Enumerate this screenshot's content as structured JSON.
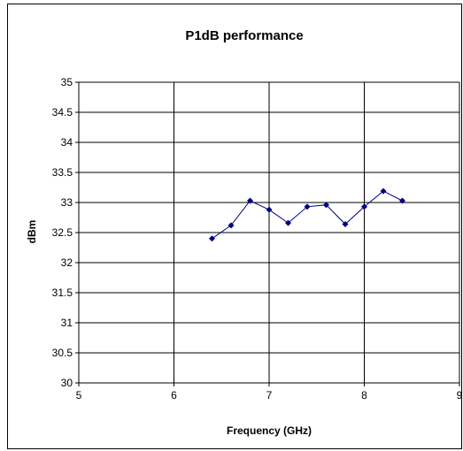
{
  "chart_data": {
    "type": "line",
    "title": "P1dB performance",
    "xlabel": "Frequency (GHz)",
    "ylabel": "dBm",
    "xlim": [
      5,
      9
    ],
    "ylim": [
      30,
      35
    ],
    "xticks": [
      5,
      6,
      7,
      8,
      9
    ],
    "yticks": [
      30,
      30.5,
      31,
      31.5,
      32,
      32.5,
      33,
      33.5,
      34,
      34.5,
      35
    ],
    "grid": {
      "x": true,
      "y": true
    },
    "series": [
      {
        "color": "#000080",
        "marker": "diamond",
        "x": [
          6.4,
          6.6,
          6.8,
          7.0,
          7.2,
          7.4,
          7.6,
          7.8,
          8.0,
          8.2,
          8.4
        ],
        "y": [
          32.4,
          32.62,
          33.03,
          32.88,
          32.66,
          32.93,
          32.96,
          32.64,
          32.93,
          33.19,
          33.03
        ]
      }
    ]
  }
}
